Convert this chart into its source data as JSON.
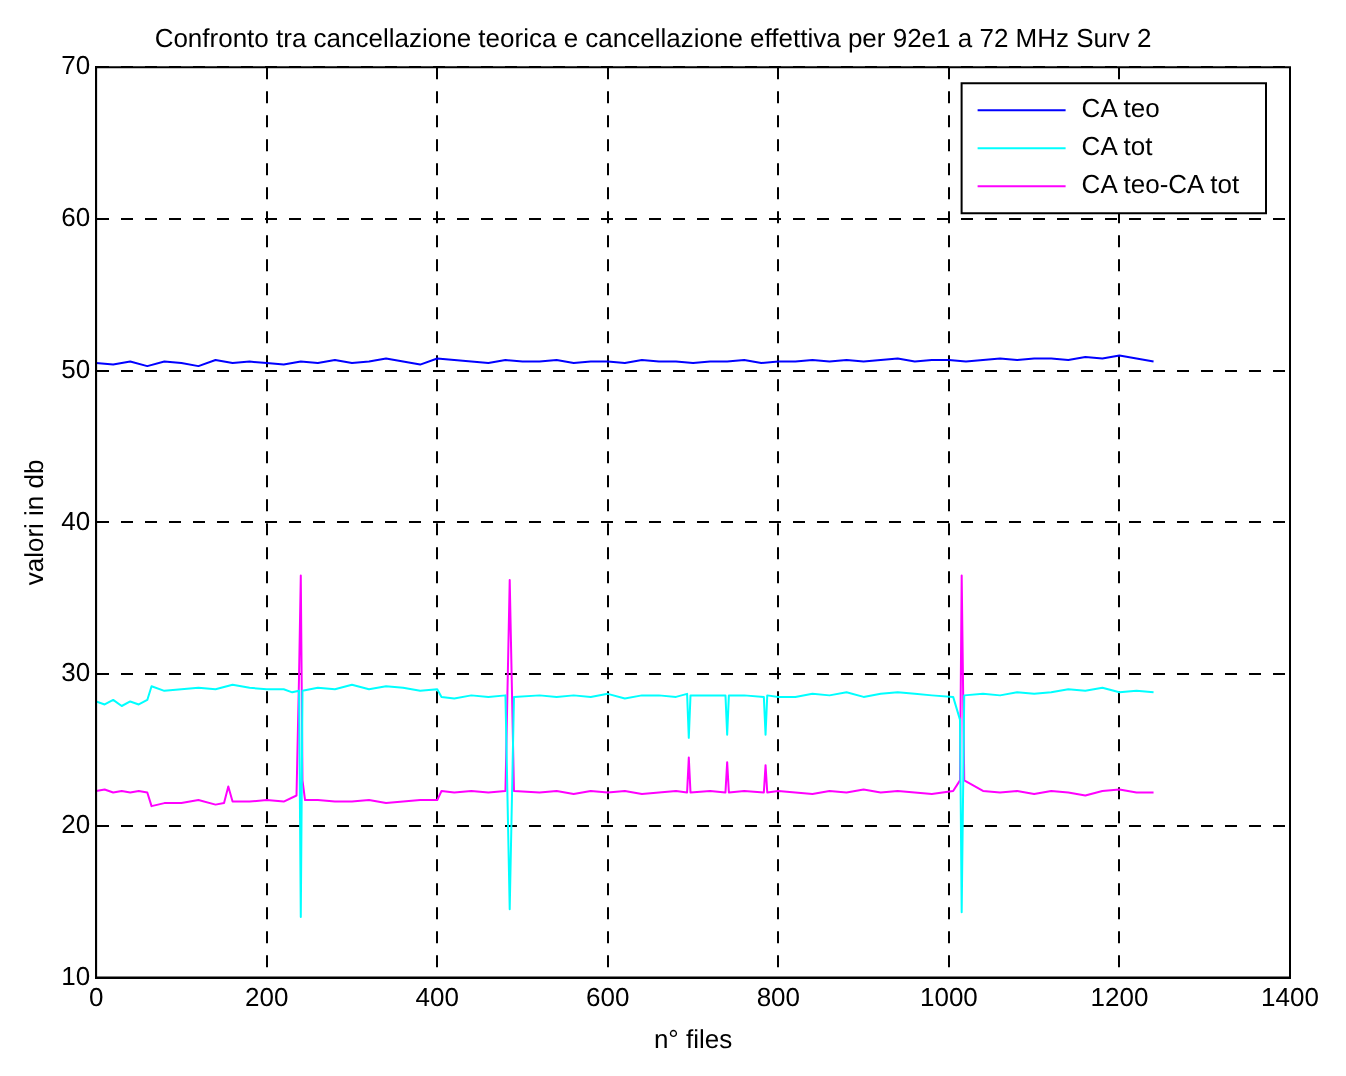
{
  "chart_data": {
    "type": "line",
    "title": "Confronto tra cancellazione teorica e cancellazione effettiva per 92e1 a 72 MHz Surv 2",
    "xlabel": "n° files",
    "ylabel": "valori in db",
    "xlim": [
      0,
      1400
    ],
    "xticks": [
      0,
      200,
      400,
      600,
      800,
      1000,
      1200,
      1400
    ],
    "ylim": [
      10,
      70
    ],
    "yticks": [
      10,
      20,
      30,
      40,
      50,
      60,
      70
    ],
    "grid": true,
    "legend": "top right",
    "marker": "none",
    "line_style": "solid",
    "series": [
      {
        "name": "CA teo",
        "color": "#0000ff",
        "x": [
          0,
          20,
          40,
          60,
          80,
          100,
          120,
          140,
          160,
          180,
          200,
          220,
          240,
          260,
          280,
          300,
          320,
          340,
          360,
          380,
          400,
          420,
          440,
          460,
          480,
          500,
          520,
          540,
          560,
          580,
          600,
          620,
          640,
          660,
          680,
          700,
          720,
          740,
          760,
          780,
          800,
          820,
          840,
          860,
          880,
          900,
          920,
          940,
          960,
          980,
          1000,
          1020,
          1040,
          1060,
          1080,
          1100,
          1120,
          1140,
          1160,
          1180,
          1200,
          1220,
          1240
        ],
        "values": [
          50.5,
          50.4,
          50.6,
          50.3,
          50.6,
          50.5,
          50.3,
          50.7,
          50.5,
          50.6,
          50.5,
          50.4,
          50.6,
          50.5,
          50.7,
          50.5,
          50.6,
          50.8,
          50.6,
          50.4,
          50.8,
          50.7,
          50.6,
          50.5,
          50.7,
          50.6,
          50.6,
          50.7,
          50.5,
          50.6,
          50.6,
          50.5,
          50.7,
          50.6,
          50.6,
          50.5,
          50.6,
          50.6,
          50.7,
          50.5,
          50.6,
          50.6,
          50.7,
          50.6,
          50.7,
          50.6,
          50.7,
          50.8,
          50.6,
          50.7,
          50.7,
          50.6,
          50.7,
          50.8,
          50.7,
          50.8,
          50.8,
          50.7,
          50.9,
          50.8,
          51.0,
          50.8,
          50.6
        ]
      },
      {
        "name": "CA tot",
        "color": "#00ffff",
        "x": [
          0,
          10,
          20,
          30,
          40,
          50,
          60,
          65,
          80,
          100,
          120,
          140,
          160,
          180,
          200,
          220,
          230,
          238,
          240,
          242,
          260,
          280,
          300,
          320,
          340,
          360,
          380,
          400,
          405,
          420,
          440,
          460,
          480,
          485,
          490,
          520,
          540,
          560,
          580,
          600,
          620,
          640,
          660,
          680,
          693,
          695,
          697,
          720,
          738,
          740,
          742,
          760,
          783,
          785,
          787,
          800,
          820,
          840,
          860,
          880,
          900,
          920,
          940,
          960,
          980,
          1005,
          1013,
          1015,
          1018,
          1040,
          1060,
          1080,
          1100,
          1120,
          1140,
          1160,
          1180,
          1200,
          1220,
          1240
        ],
        "values": [
          28.2,
          28.0,
          28.3,
          27.9,
          28.2,
          28.0,
          28.3,
          29.2,
          28.9,
          29.0,
          29.1,
          29.0,
          29.3,
          29.1,
          29.0,
          29.0,
          28.8,
          28.9,
          14.0,
          28.9,
          29.1,
          29.0,
          29.3,
          29.0,
          29.2,
          29.1,
          28.9,
          29.0,
          28.5,
          28.4,
          28.6,
          28.5,
          28.6,
          14.5,
          28.5,
          28.6,
          28.5,
          28.6,
          28.5,
          28.7,
          28.4,
          28.6,
          28.6,
          28.5,
          28.7,
          25.8,
          28.6,
          28.6,
          28.6,
          26.0,
          28.6,
          28.6,
          28.5,
          26.0,
          28.6,
          28.5,
          28.5,
          28.7,
          28.6,
          28.8,
          28.5,
          28.7,
          28.8,
          28.7,
          28.6,
          28.5,
          27.0,
          14.3,
          28.6,
          28.7,
          28.6,
          28.8,
          28.7,
          28.8,
          29.0,
          28.9,
          29.1,
          28.8,
          28.9,
          28.8
        ]
      },
      {
        "name": "CA teo-CA tot",
        "color": "#ff00ff",
        "x": [
          0,
          10,
          20,
          30,
          40,
          50,
          60,
          65,
          80,
          100,
          120,
          140,
          150,
          155,
          160,
          180,
          200,
          220,
          235,
          238,
          240,
          242,
          245,
          260,
          280,
          300,
          320,
          340,
          360,
          380,
          400,
          405,
          420,
          440,
          460,
          480,
          485,
          490,
          520,
          540,
          560,
          580,
          600,
          620,
          640,
          660,
          680,
          693,
          695,
          697,
          720,
          738,
          740,
          742,
          760,
          783,
          785,
          787,
          800,
          820,
          840,
          860,
          880,
          900,
          920,
          940,
          960,
          980,
          1005,
          1013,
          1015,
          1018,
          1040,
          1060,
          1080,
          1100,
          1120,
          1140,
          1160,
          1180,
          1200,
          1220,
          1240
        ],
        "values": [
          22.3,
          22.4,
          22.2,
          22.3,
          22.2,
          22.3,
          22.2,
          21.3,
          21.5,
          21.5,
          21.7,
          21.4,
          21.5,
          22.6,
          21.6,
          21.6,
          21.7,
          21.6,
          22.0,
          30.0,
          36.5,
          23.0,
          21.7,
          21.7,
          21.6,
          21.6,
          21.7,
          21.5,
          21.6,
          21.7,
          21.7,
          22.3,
          22.2,
          22.3,
          22.2,
          22.3,
          36.2,
          22.3,
          22.2,
          22.3,
          22.1,
          22.3,
          22.2,
          22.3,
          22.1,
          22.2,
          22.3,
          22.2,
          24.5,
          22.2,
          22.3,
          22.2,
          24.2,
          22.2,
          22.3,
          22.2,
          24.0,
          22.2,
          22.3,
          22.2,
          22.1,
          22.3,
          22.2,
          22.4,
          22.2,
          22.3,
          22.2,
          22.1,
          22.3,
          23.0,
          36.5,
          23.0,
          22.3,
          22.2,
          22.3,
          22.1,
          22.3,
          22.2,
          22.0,
          22.3,
          22.4,
          22.2,
          22.2
        ]
      }
    ]
  }
}
